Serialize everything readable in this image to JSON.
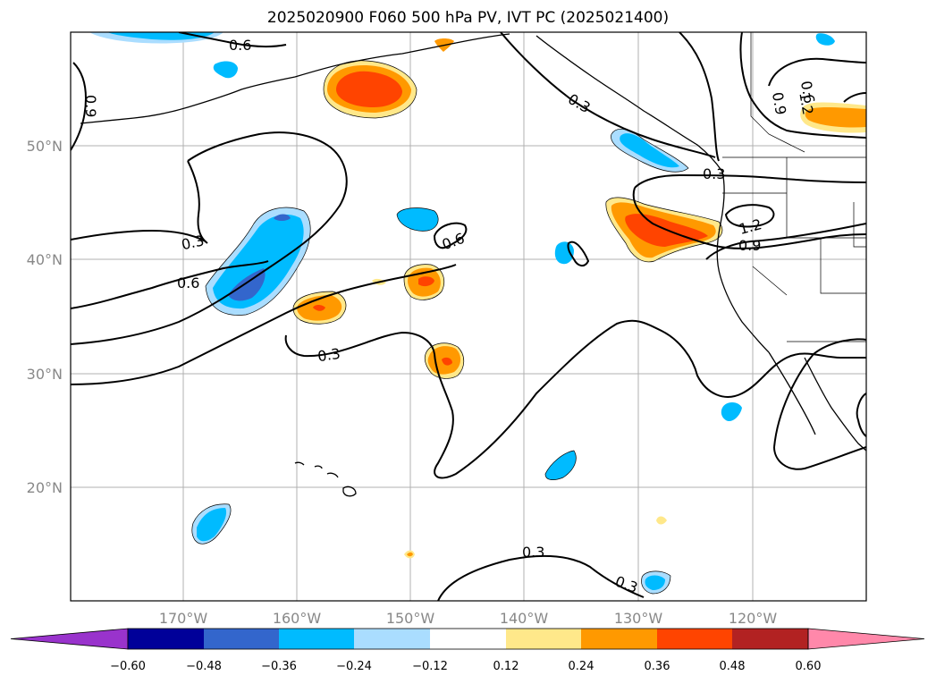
{
  "title": "2025020900 F060 500 hPa PV, IVT PC (2025021400)",
  "axes": {
    "lat_ticks": [
      "50°N",
      "40°N",
      "30°N",
      "20°N"
    ],
    "lon_ticks": [
      "170°W",
      "160°W",
      "150°W",
      "140°W",
      "130°W",
      "120°W"
    ]
  },
  "colorbar": {
    "ticks": [
      "−0.60",
      "−0.48",
      "−0.36",
      "−0.24",
      "−0.12",
      "0.12",
      "0.24",
      "0.36",
      "0.48",
      "0.60"
    ],
    "colors": [
      "#9933cc",
      "#000099",
      "#3366cc",
      "#00bbff",
      "#aaddff",
      "#ffffff",
      "#ffe88a",
      "#ff9900",
      "#ff4400",
      "#b22222",
      "#ff88aa"
    ]
  },
  "contour_labels": [
    "0.6",
    "0.9",
    "0.3",
    "0.3",
    "0.6",
    "0.6",
    "0.3",
    "0.3",
    "0.6",
    "1.2",
    "0.9",
    "0.9",
    "1.2",
    "0.3",
    "0.3"
  ]
}
